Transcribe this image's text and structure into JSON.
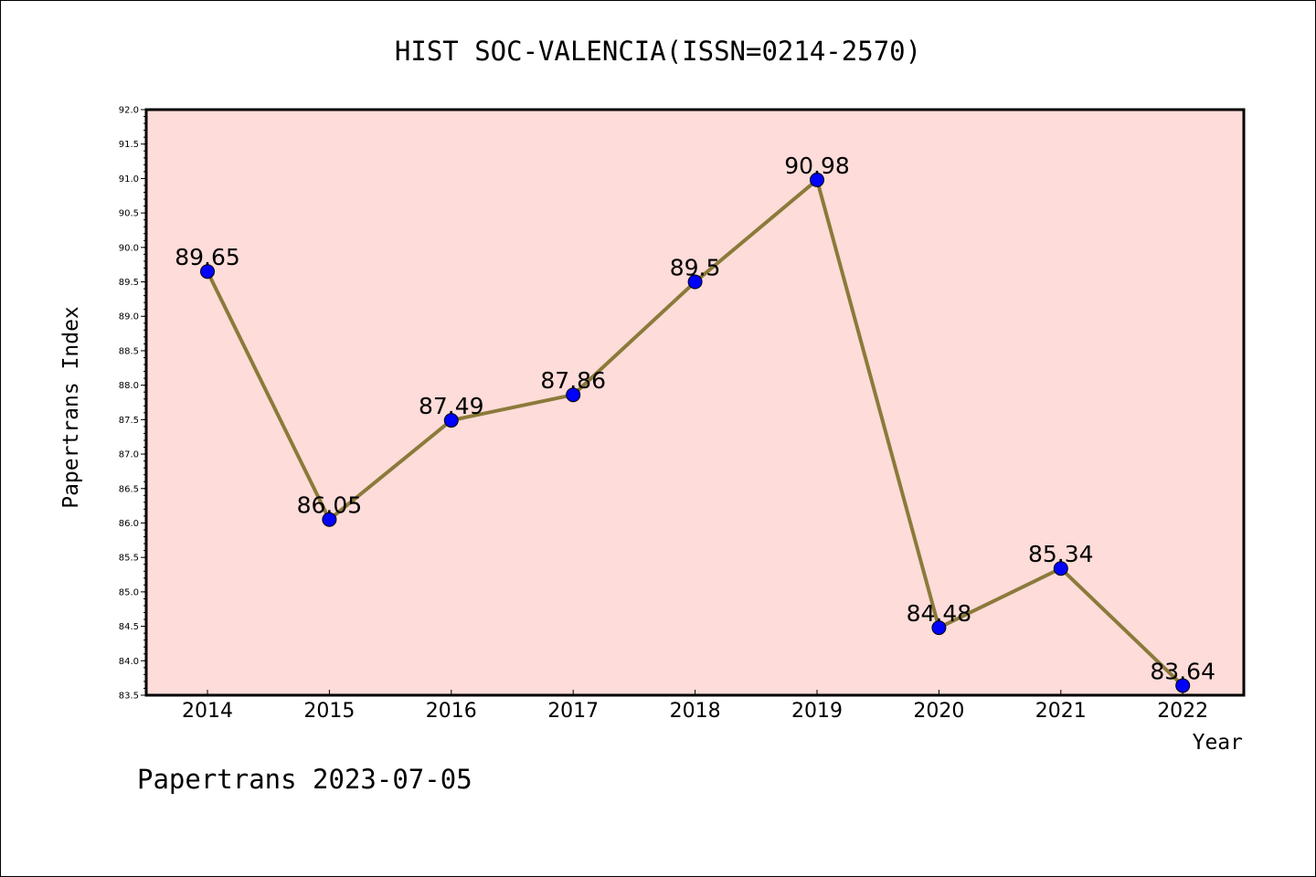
{
  "chart_data": {
    "type": "line",
    "title": "HIST SOC-VALENCIA(ISSN=0214-2570)",
    "xlabel": "Year",
    "ylabel": "Papertrans Index",
    "categories": [
      "2014",
      "2015",
      "2016",
      "2017",
      "2018",
      "2019",
      "2020",
      "2021",
      "2022"
    ],
    "series": [
      {
        "values": [
          89.65,
          86.05,
          87.49,
          87.86,
          89.5,
          90.98,
          84.48,
          85.34,
          83.64
        ],
        "data_labels": [
          "89.65",
          "86.05",
          "87.49",
          "87.86",
          "89.5",
          "90.98",
          "84.48",
          "85.34",
          "83.64"
        ],
        "line_color": "#8b7a3a",
        "marker_color": "#0000ff"
      }
    ],
    "ylim": [
      83.5,
      92.0
    ],
    "yticks": [
      "83.5",
      "84.0",
      "84.5",
      "85.0",
      "85.5",
      "86.0",
      "86.5",
      "87.0",
      "87.5",
      "88.0",
      "88.5",
      "89.0",
      "89.5",
      "90.0",
      "90.5",
      "91.0",
      "91.5",
      "92.0"
    ],
    "plot_background": "#fddcd9",
    "grid": false,
    "legend": "none"
  },
  "footer": "Papertrans 2023-07-05"
}
